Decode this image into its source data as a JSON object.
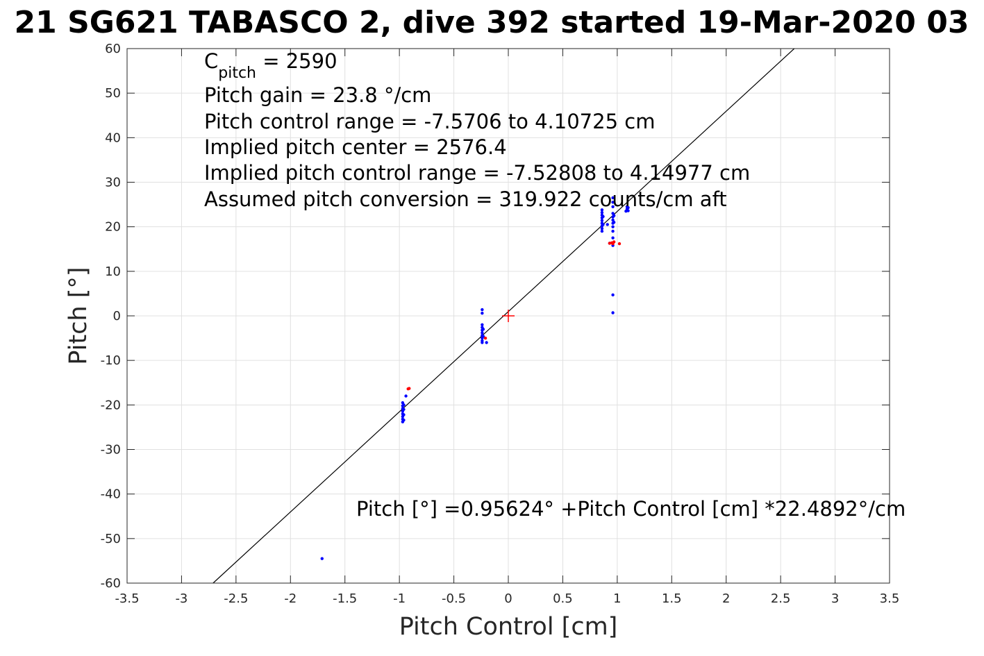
{
  "chart_data": {
    "type": "scatter",
    "title": "21 SG621 TABASCO 2, dive 392 started 19-Mar-2020 03",
    "xlabel": "Pitch Control [cm]",
    "ylabel": "Pitch [°]",
    "xlim": [
      -3.5,
      3.5
    ],
    "ylim": [
      -60,
      60
    ],
    "xticks": [
      "-3.5",
      "-3",
      "-2.5",
      "-2",
      "-1.5",
      "-1",
      "-0.5",
      "0",
      "0.5",
      "1",
      "1.5",
      "2",
      "2.5",
      "3",
      "3.5"
    ],
    "yticks": [
      "60",
      "50",
      "40",
      "30",
      "20",
      "10",
      "0",
      "-10",
      "-20",
      "-30",
      "-40",
      "-50",
      "-60"
    ],
    "grid": true,
    "annotations": {
      "c_pitch_base": "C",
      "c_pitch_sub": "pitch",
      "c_pitch_value": " = 2590",
      "gain": "Pitch gain = 23.8 °/cm",
      "control_range": "Pitch control range = -7.5706 to 4.10725 cm",
      "implied_center": "Implied pitch center = 2576.4",
      "implied_range": "Implied pitch control range = -7.52808 to 4.14977 cm",
      "conversion": "Assumed pitch conversion = 319.922 counts/cm aft",
      "fit_equation": "Pitch [°] =0.95624° +Pitch Control [cm] *22.4892°/cm"
    },
    "fit_line": {
      "intercept": 0.95624,
      "slope": 22.4892,
      "color": "#000000"
    },
    "center_marker": {
      "x": 0,
      "y": 0,
      "color": "#ff0000"
    },
    "series": [
      {
        "color": "#0000ff",
        "points": [
          [
            -1.71,
            -54.5
          ],
          [
            -0.97,
            -19.5
          ],
          [
            -0.97,
            -20.2
          ],
          [
            -0.97,
            -20.8
          ],
          [
            -0.97,
            -21.4
          ],
          [
            -0.97,
            -22.0
          ],
          [
            -0.97,
            -22.6
          ],
          [
            -0.97,
            -23.2
          ],
          [
            -0.97,
            -23.8
          ],
          [
            -0.96,
            -20.0
          ],
          [
            -0.96,
            -21.0
          ],
          [
            -0.96,
            -22.2
          ],
          [
            -0.96,
            -23.4
          ],
          [
            -0.94,
            -18.0
          ],
          [
            -0.24,
            1.4
          ],
          [
            -0.24,
            0.6
          ],
          [
            -0.24,
            -2.0
          ],
          [
            -0.24,
            -2.6
          ],
          [
            -0.24,
            -3.2
          ],
          [
            -0.24,
            -3.8
          ],
          [
            -0.24,
            -4.4
          ],
          [
            -0.24,
            -5.0
          ],
          [
            -0.24,
            -5.6
          ],
          [
            -0.24,
            -6.0
          ],
          [
            -0.23,
            -3.0
          ],
          [
            -0.23,
            -4.6
          ],
          [
            -0.2,
            -6.0
          ],
          [
            0.86,
            19.0
          ],
          [
            0.86,
            19.6
          ],
          [
            0.86,
            20.2
          ],
          [
            0.86,
            20.8
          ],
          [
            0.86,
            21.4
          ],
          [
            0.86,
            22.0
          ],
          [
            0.86,
            22.6
          ],
          [
            0.86,
            23.2
          ],
          [
            0.86,
            23.8
          ],
          [
            0.87,
            20.5
          ],
          [
            0.87,
            22.3
          ],
          [
            0.91,
            20.5
          ],
          [
            0.93,
            16.3
          ],
          [
            0.96,
            26.5
          ],
          [
            0.96,
            25.5
          ],
          [
            0.96,
            24.5
          ],
          [
            0.96,
            23.0
          ],
          [
            0.96,
            22.2
          ],
          [
            0.96,
            21.5
          ],
          [
            0.96,
            20.8
          ],
          [
            0.96,
            20.0
          ],
          [
            0.96,
            19.0
          ],
          [
            0.96,
            17.5
          ],
          [
            0.96,
            15.8
          ],
          [
            0.96,
            4.7
          ],
          [
            0.96,
            0.7
          ],
          [
            0.97,
            22.5
          ],
          [
            0.97,
            21.0
          ],
          [
            1.08,
            23.5
          ],
          [
            1.09,
            24.0
          ],
          [
            1.09,
            24.5
          ],
          [
            1.1,
            23.6
          ],
          [
            1.1,
            24.3
          ]
        ]
      },
      {
        "color": "#ff0000",
        "points": [
          [
            -0.92,
            -16.4
          ],
          [
            -0.91,
            -16.3
          ],
          [
            -0.21,
            -5.0
          ],
          [
            0.93,
            16.3
          ],
          [
            0.95,
            16.4
          ],
          [
            0.96,
            16.2
          ],
          [
            0.97,
            16.6
          ],
          [
            1.02,
            16.2
          ]
        ]
      }
    ]
  }
}
